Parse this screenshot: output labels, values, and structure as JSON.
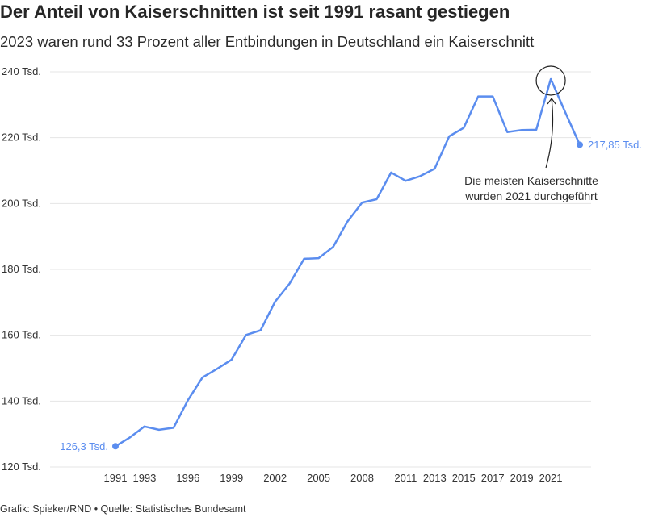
{
  "title": "Der Anteil von Kaiserschnitten ist seit 1991 rasant gestiegen",
  "subtitle": "2023 waren rund 33 Prozent aller Entbindungen in Deutschland ein Kaiserschnitt",
  "footer": "Grafik: Spieker/RND • Quelle: Statistisches Bundesamt",
  "colors": {
    "line": "#5b8def",
    "grid": "#e4e4e4",
    "text": "#333333"
  },
  "chart_data": {
    "type": "line",
    "title": "Der Anteil von Kaiserschnitten ist seit 1991 rasant gestiegen",
    "subtitle": "2023 waren rund 33 Prozent aller Entbindungen in Deutschland ein Kaiserschnitt",
    "xlabel": "",
    "ylabel": "",
    "ylim": [
      120,
      240
    ],
    "xlim": [
      1991,
      2023
    ],
    "grid": true,
    "x": [
      1991,
      1992,
      1993,
      1994,
      1995,
      1996,
      1997,
      1998,
      1999,
      2000,
      2001,
      2002,
      2003,
      2004,
      2005,
      2006,
      2007,
      2008,
      2009,
      2010,
      2011,
      2012,
      2013,
      2014,
      2015,
      2016,
      2017,
      2018,
      2019,
      2020,
      2021,
      2022,
      2023
    ],
    "values": [
      126.3,
      129.0,
      132.3,
      131.3,
      131.9,
      140.3,
      147.2,
      149.8,
      152.6,
      160.1,
      161.5,
      170.2,
      175.7,
      183.2,
      183.4,
      186.8,
      194.6,
      200.3,
      201.3,
      209.4,
      206.9,
      208.3,
      210.6,
      220.4,
      223.0,
      232.5,
      232.5,
      221.7,
      222.3,
      222.4,
      237.8,
      227.7,
      217.85
    ],
    "y_ticks": [
      {
        "value": 240,
        "label": "240 Tsd."
      },
      {
        "value": 220,
        "label": "220 Tsd."
      },
      {
        "value": 200,
        "label": "200 Tsd."
      },
      {
        "value": 180,
        "label": "180 Tsd."
      },
      {
        "value": 160,
        "label": "160 Tsd."
      },
      {
        "value": 140,
        "label": "140 Tsd."
      },
      {
        "value": 120,
        "label": "120 Tsd."
      }
    ],
    "x_ticks": [
      {
        "value": 1991,
        "label": "1991"
      },
      {
        "value": 1993,
        "label": "1993"
      },
      {
        "value": 1996,
        "label": "1996"
      },
      {
        "value": 1999,
        "label": "1999"
      },
      {
        "value": 2002,
        "label": "2002"
      },
      {
        "value": 2005,
        "label": "2005"
      },
      {
        "value": 2008,
        "label": "2008"
      },
      {
        "value": 2011,
        "label": "2011"
      },
      {
        "value": 2013,
        "label": "2013"
      },
      {
        "value": 2015,
        "label": "2015"
      },
      {
        "value": 2017,
        "label": "2017"
      },
      {
        "value": 2019,
        "label": "2019"
      },
      {
        "value": 2021,
        "label": "2021"
      }
    ],
    "start_label": "126,3 Tsd.",
    "end_label": "217,85 Tsd.",
    "annotation": {
      "year": 2021,
      "value": 237.8,
      "lines": [
        "Die meisten Kaiserschnitte",
        "wurden 2021 durchgeführt"
      ]
    }
  }
}
